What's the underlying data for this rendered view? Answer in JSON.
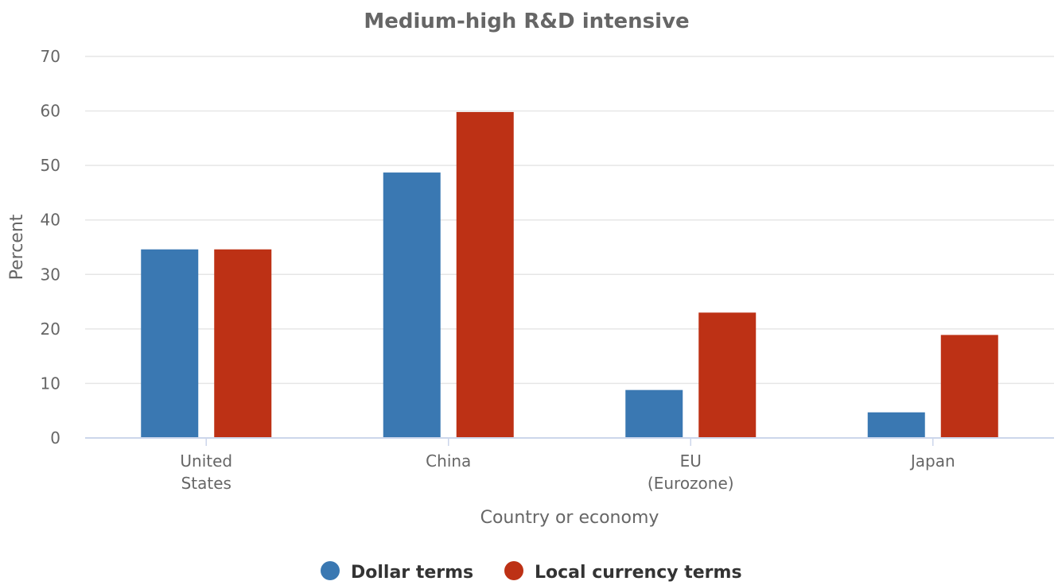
{
  "chart_data": {
    "type": "bar",
    "title": "Medium-high R&D intensive",
    "xlabel": "Country or economy",
    "ylabel": "Percent",
    "ylim": [
      0,
      70
    ],
    "yticks": [
      0,
      10,
      20,
      30,
      40,
      50,
      60,
      70
    ],
    "grid": true,
    "legend_position": "bottom-center",
    "categories": [
      {
        "lines": [
          "United",
          "States"
        ]
      },
      {
        "lines": [
          "China"
        ]
      },
      {
        "lines": [
          "EU",
          "(Eurozone)"
        ]
      },
      {
        "lines": [
          "Japan"
        ]
      }
    ],
    "series": [
      {
        "name": "Dollar terms",
        "color": "#3a78b2",
        "values": [
          34.6,
          48.7,
          8.8,
          4.7
        ]
      },
      {
        "name": "Local currency terms",
        "color": "#bd3115",
        "values": [
          34.6,
          59.8,
          23.0,
          18.9
        ]
      }
    ]
  }
}
